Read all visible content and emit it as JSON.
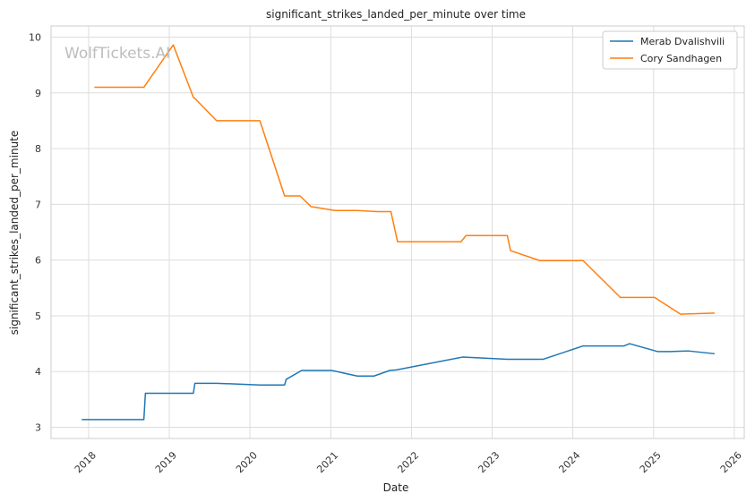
{
  "chart_data": {
    "type": "line",
    "title": "significant_strikes_landed_per_minute over time",
    "xlabel": "Date",
    "ylabel": "significant_strikes_landed_per_minute",
    "watermark": "WolfTickets.AI",
    "xlim": [
      "2017-07-15",
      "2026-02-15"
    ],
    "ylim": [
      2.8,
      10.2
    ],
    "x_ticks": [
      "2018",
      "2019",
      "2020",
      "2021",
      "2022",
      "2023",
      "2024",
      "2025",
      "2026"
    ],
    "y_ticks": [
      "3",
      "4",
      "5",
      "6",
      "7",
      "8",
      "9",
      "10"
    ],
    "grid": true,
    "legend_position": "top-right",
    "series": [
      {
        "name": "Merab Dvalishvili",
        "color": "#1f77b4",
        "points": [
          [
            "2017-12-01",
            3.14
          ],
          [
            "2018-09-08",
            3.14
          ],
          [
            "2018-09-15",
            3.61
          ],
          [
            "2019-04-20",
            3.61
          ],
          [
            "2019-04-27",
            3.79
          ],
          [
            "2019-08-03",
            3.79
          ],
          [
            "2020-02-15",
            3.76
          ],
          [
            "2020-06-06",
            3.76
          ],
          [
            "2020-06-13",
            3.86
          ],
          [
            "2020-08-22",
            4.02
          ],
          [
            "2021-01-05",
            4.02
          ],
          [
            "2021-05-01",
            3.92
          ],
          [
            "2021-07-15",
            3.92
          ],
          [
            "2021-09-25",
            4.02
          ],
          [
            "2021-10-25",
            4.03
          ],
          [
            "2022-08-20",
            4.26
          ],
          [
            "2023-03-11",
            4.22
          ],
          [
            "2023-08-19",
            4.22
          ],
          [
            "2024-02-17",
            4.46
          ],
          [
            "2024-08-20",
            4.46
          ],
          [
            "2024-09-14",
            4.5
          ],
          [
            "2025-01-18",
            4.36
          ],
          [
            "2025-03-15",
            4.36
          ],
          [
            "2025-06-07",
            4.37
          ],
          [
            "2025-10-04",
            4.32
          ]
        ]
      },
      {
        "name": "Cory Sandhagen",
        "color": "#ff7f0e",
        "points": [
          [
            "2018-01-27",
            9.1
          ],
          [
            "2018-09-08",
            9.1
          ],
          [
            "2019-01-19",
            9.86
          ],
          [
            "2019-04-20",
            8.92
          ],
          [
            "2019-04-27",
            8.9
          ],
          [
            "2019-08-03",
            8.5
          ],
          [
            "2020-02-15",
            8.5
          ],
          [
            "2020-06-06",
            7.15
          ],
          [
            "2020-08-15",
            7.15
          ],
          [
            "2020-10-03",
            6.96
          ],
          [
            "2021-01-20",
            6.89
          ],
          [
            "2021-05-01",
            6.89
          ],
          [
            "2021-08-01",
            6.87
          ],
          [
            "2021-09-30",
            6.87
          ],
          [
            "2021-10-30",
            6.33
          ],
          [
            "2022-08-13",
            6.33
          ],
          [
            "2022-09-05",
            6.44
          ],
          [
            "2023-03-11",
            6.44
          ],
          [
            "2023-03-25",
            6.17
          ],
          [
            "2023-08-05",
            5.99
          ],
          [
            "2024-02-17",
            5.99
          ],
          [
            "2024-08-03",
            5.33
          ],
          [
            "2025-01-05",
            5.33
          ],
          [
            "2025-05-03",
            5.03
          ],
          [
            "2025-10-04",
            5.05
          ]
        ]
      }
    ]
  }
}
